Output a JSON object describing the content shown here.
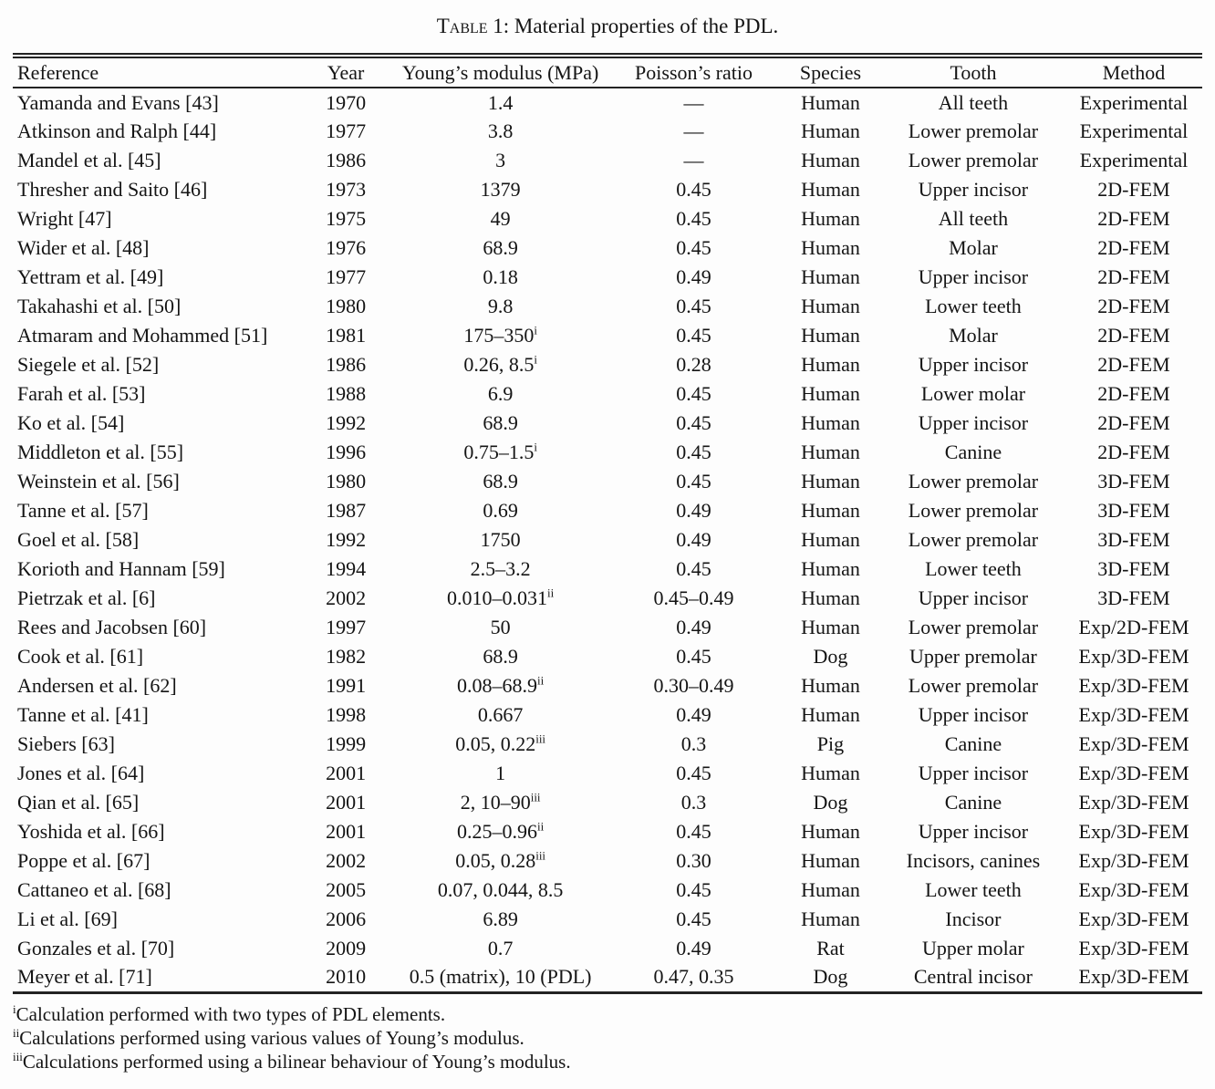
{
  "caption": {
    "word": "Table",
    "rest": " 1: Material properties of the PDL."
  },
  "table": {
    "columns": [
      {
        "label": "Reference"
      },
      {
        "label": "Year"
      },
      {
        "label": "Young’s modulus (MPa)"
      },
      {
        "label": "Poisson’s ratio"
      },
      {
        "label": "Species"
      },
      {
        "label": "Tooth"
      },
      {
        "label": "Method"
      }
    ],
    "rows": [
      {
        "reference": "Yamanda and Evans [43]",
        "year": "1970",
        "modulus": "1.4",
        "modulus_sup": "",
        "poisson": "—",
        "species": "Human",
        "tooth": "All teeth",
        "method": "Experimental"
      },
      {
        "reference": "Atkinson and Ralph [44]",
        "year": "1977",
        "modulus": "3.8",
        "modulus_sup": "",
        "poisson": "—",
        "species": "Human",
        "tooth": "Lower premolar",
        "method": "Experimental"
      },
      {
        "reference": "Mandel et al. [45]",
        "year": "1986",
        "modulus": "3",
        "modulus_sup": "",
        "poisson": "—",
        "species": "Human",
        "tooth": "Lower premolar",
        "method": "Experimental"
      },
      {
        "reference": "Thresher and Saito [46]",
        "year": "1973",
        "modulus": "1379",
        "modulus_sup": "",
        "poisson": "0.45",
        "species": "Human",
        "tooth": "Upper incisor",
        "method": "2D-FEM"
      },
      {
        "reference": "Wright [47]",
        "year": "1975",
        "modulus": "49",
        "modulus_sup": "",
        "poisson": "0.45",
        "species": "Human",
        "tooth": "All teeth",
        "method": "2D-FEM"
      },
      {
        "reference": "Wider et al. [48]",
        "year": "1976",
        "modulus": "68.9",
        "modulus_sup": "",
        "poisson": "0.45",
        "species": "Human",
        "tooth": "Molar",
        "method": "2D-FEM"
      },
      {
        "reference": "Yettram et al. [49]",
        "year": "1977",
        "modulus": "0.18",
        "modulus_sup": "",
        "poisson": "0.49",
        "species": "Human",
        "tooth": "Upper incisor",
        "method": "2D-FEM"
      },
      {
        "reference": "Takahashi et al. [50]",
        "year": "1980",
        "modulus": "9.8",
        "modulus_sup": "",
        "poisson": "0.45",
        "species": "Human",
        "tooth": "Lower teeth",
        "method": "2D-FEM"
      },
      {
        "reference": "Atmaram and Mohammed [51]",
        "year": "1981",
        "modulus": "175–350",
        "modulus_sup": "i",
        "poisson": "0.45",
        "species": "Human",
        "tooth": "Molar",
        "method": "2D-FEM"
      },
      {
        "reference": "Siegele et al. [52]",
        "year": "1986",
        "modulus": "0.26, 8.5",
        "modulus_sup": "i",
        "poisson": "0.28",
        "species": "Human",
        "tooth": "Upper incisor",
        "method": "2D-FEM"
      },
      {
        "reference": "Farah et al. [53]",
        "year": "1988",
        "modulus": "6.9",
        "modulus_sup": "",
        "poisson": "0.45",
        "species": "Human",
        "tooth": "Lower molar",
        "method": "2D-FEM"
      },
      {
        "reference": "Ko et al. [54]",
        "year": "1992",
        "modulus": "68.9",
        "modulus_sup": "",
        "poisson": "0.45",
        "species": "Human",
        "tooth": "Upper incisor",
        "method": "2D-FEM"
      },
      {
        "reference": "Middleton et al. [55]",
        "year": "1996",
        "modulus": "0.75–1.5",
        "modulus_sup": "i",
        "poisson": "0.45",
        "species": "Human",
        "tooth": "Canine",
        "method": "2D-FEM"
      },
      {
        "reference": "Weinstein et al. [56]",
        "year": "1980",
        "modulus": "68.9",
        "modulus_sup": "",
        "poisson": "0.45",
        "species": "Human",
        "tooth": "Lower premolar",
        "method": "3D-FEM"
      },
      {
        "reference": "Tanne et al. [57]",
        "year": "1987",
        "modulus": "0.69",
        "modulus_sup": "",
        "poisson": "0.49",
        "species": "Human",
        "tooth": "Lower premolar",
        "method": "3D-FEM"
      },
      {
        "reference": "Goel et al. [58]",
        "year": "1992",
        "modulus": "1750",
        "modulus_sup": "",
        "poisson": "0.49",
        "species": "Human",
        "tooth": "Lower premolar",
        "method": "3D-FEM"
      },
      {
        "reference": "Korioth and Hannam [59]",
        "year": "1994",
        "modulus": "2.5–3.2",
        "modulus_sup": "",
        "poisson": "0.45",
        "species": "Human",
        "tooth": "Lower teeth",
        "method": "3D-FEM"
      },
      {
        "reference": "Pietrzak et al. [6]",
        "year": "2002",
        "modulus": "0.010–0.031",
        "modulus_sup": "ii",
        "poisson": "0.45–0.49",
        "species": "Human",
        "tooth": "Upper incisor",
        "method": "3D-FEM"
      },
      {
        "reference": "Rees and Jacobsen [60]",
        "year": "1997",
        "modulus": "50",
        "modulus_sup": "",
        "poisson": "0.49",
        "species": "Human",
        "tooth": "Lower premolar",
        "method": "Exp/2D-FEM"
      },
      {
        "reference": "Cook et al. [61]",
        "year": "1982",
        "modulus": "68.9",
        "modulus_sup": "",
        "poisson": "0.45",
        "species": "Dog",
        "tooth": "Upper premolar",
        "method": "Exp/3D-FEM"
      },
      {
        "reference": "Andersen et al. [62]",
        "year": "1991",
        "modulus": "0.08–68.9",
        "modulus_sup": "ii",
        "poisson": "0.30–0.49",
        "species": "Human",
        "tooth": "Lower premolar",
        "method": "Exp/3D-FEM"
      },
      {
        "reference": "Tanne et al. [41]",
        "year": "1998",
        "modulus": "0.667",
        "modulus_sup": "",
        "poisson": "0.49",
        "species": "Human",
        "tooth": "Upper incisor",
        "method": "Exp/3D-FEM"
      },
      {
        "reference": "Siebers [63]",
        "year": "1999",
        "modulus": "0.05, 0.22",
        "modulus_sup": "iii",
        "poisson": "0.3",
        "species": "Pig",
        "tooth": "Canine",
        "method": "Exp/3D-FEM"
      },
      {
        "reference": "Jones et al. [64]",
        "year": "2001",
        "modulus": "1",
        "modulus_sup": "",
        "poisson": "0.45",
        "species": "Human",
        "tooth": "Upper incisor",
        "method": "Exp/3D-FEM"
      },
      {
        "reference": "Qian et al. [65]",
        "year": "2001",
        "modulus": "2, 10–90",
        "modulus_sup": "iii",
        "poisson": "0.3",
        "species": "Dog",
        "tooth": "Canine",
        "method": "Exp/3D-FEM"
      },
      {
        "reference": "Yoshida et al. [66]",
        "year": "2001",
        "modulus": "0.25–0.96",
        "modulus_sup": "ii",
        "poisson": "0.45",
        "species": "Human",
        "tooth": "Upper incisor",
        "method": "Exp/3D-FEM"
      },
      {
        "reference": "Poppe et al. [67]",
        "year": "2002",
        "modulus": "0.05, 0.28",
        "modulus_sup": "iii",
        "poisson": "0.30",
        "species": "Human",
        "tooth": "Incisors, canines",
        "method": "Exp/3D-FEM"
      },
      {
        "reference": "Cattaneo et al. [68]",
        "year": "2005",
        "modulus": "0.07, 0.044, 8.5",
        "modulus_sup": "",
        "poisson": "0.45",
        "species": "Human",
        "tooth": "Lower teeth",
        "method": "Exp/3D-FEM"
      },
      {
        "reference": "Li et al. [69]",
        "year": "2006",
        "modulus": "6.89",
        "modulus_sup": "",
        "poisson": "0.45",
        "species": "Human",
        "tooth": "Incisor",
        "method": "Exp/3D-FEM"
      },
      {
        "reference": "Gonzales et al. [70]",
        "year": "2009",
        "modulus": "0.7",
        "modulus_sup": "",
        "poisson": "0.49",
        "species": "Rat",
        "tooth": "Upper molar",
        "method": "Exp/3D-FEM"
      },
      {
        "reference": "Meyer et al. [71]",
        "year": "2010",
        "modulus": "0.5 (matrix), 10 (PDL)",
        "modulus_sup": "",
        "poisson": "0.47, 0.35",
        "species": "Dog",
        "tooth": "Central incisor",
        "method": "Exp/3D-FEM"
      }
    ]
  },
  "footnotes": [
    {
      "marker": "i",
      "text": "Calculation performed with two types of PDL elements."
    },
    {
      "marker": "ii",
      "text": "Calculations performed using various values of Young’s modulus."
    },
    {
      "marker": "iii",
      "text": "Calculations performed using a bilinear behaviour of Young’s modulus."
    }
  ]
}
